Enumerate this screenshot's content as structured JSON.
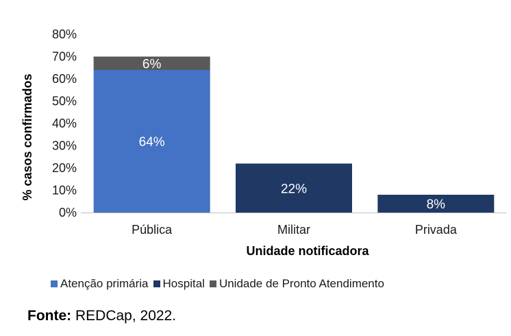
{
  "chart_data": {
    "type": "bar",
    "stacked": true,
    "categories": [
      "Pública",
      "Militar",
      "Privada"
    ],
    "series": [
      {
        "name": "Atenção primária",
        "color": "#4472C4",
        "values": [
          64,
          0,
          0
        ],
        "labels": [
          "64%",
          "",
          ""
        ]
      },
      {
        "name": "Hospital",
        "color": "#203864",
        "values": [
          0,
          22,
          8
        ],
        "labels": [
          "",
          "22%",
          "8%"
        ]
      },
      {
        "name": "Unidade de Pronto Atendimento",
        "color": "#595959",
        "values": [
          6,
          0,
          0
        ],
        "labels": [
          "6%",
          "",
          ""
        ]
      }
    ],
    "ylim": [
      0,
      80
    ],
    "yticks": [
      "0%",
      "10%",
      "20%",
      "30%",
      "40%",
      "50%",
      "60%",
      "70%",
      "80%"
    ],
    "xlabel": "Unidade notificadora",
    "ylabel": "% casos confirmados",
    "grid": false,
    "legend_position": "bottom"
  },
  "source": {
    "label": "Fonte:",
    "text": " REDCap, 2022."
  }
}
